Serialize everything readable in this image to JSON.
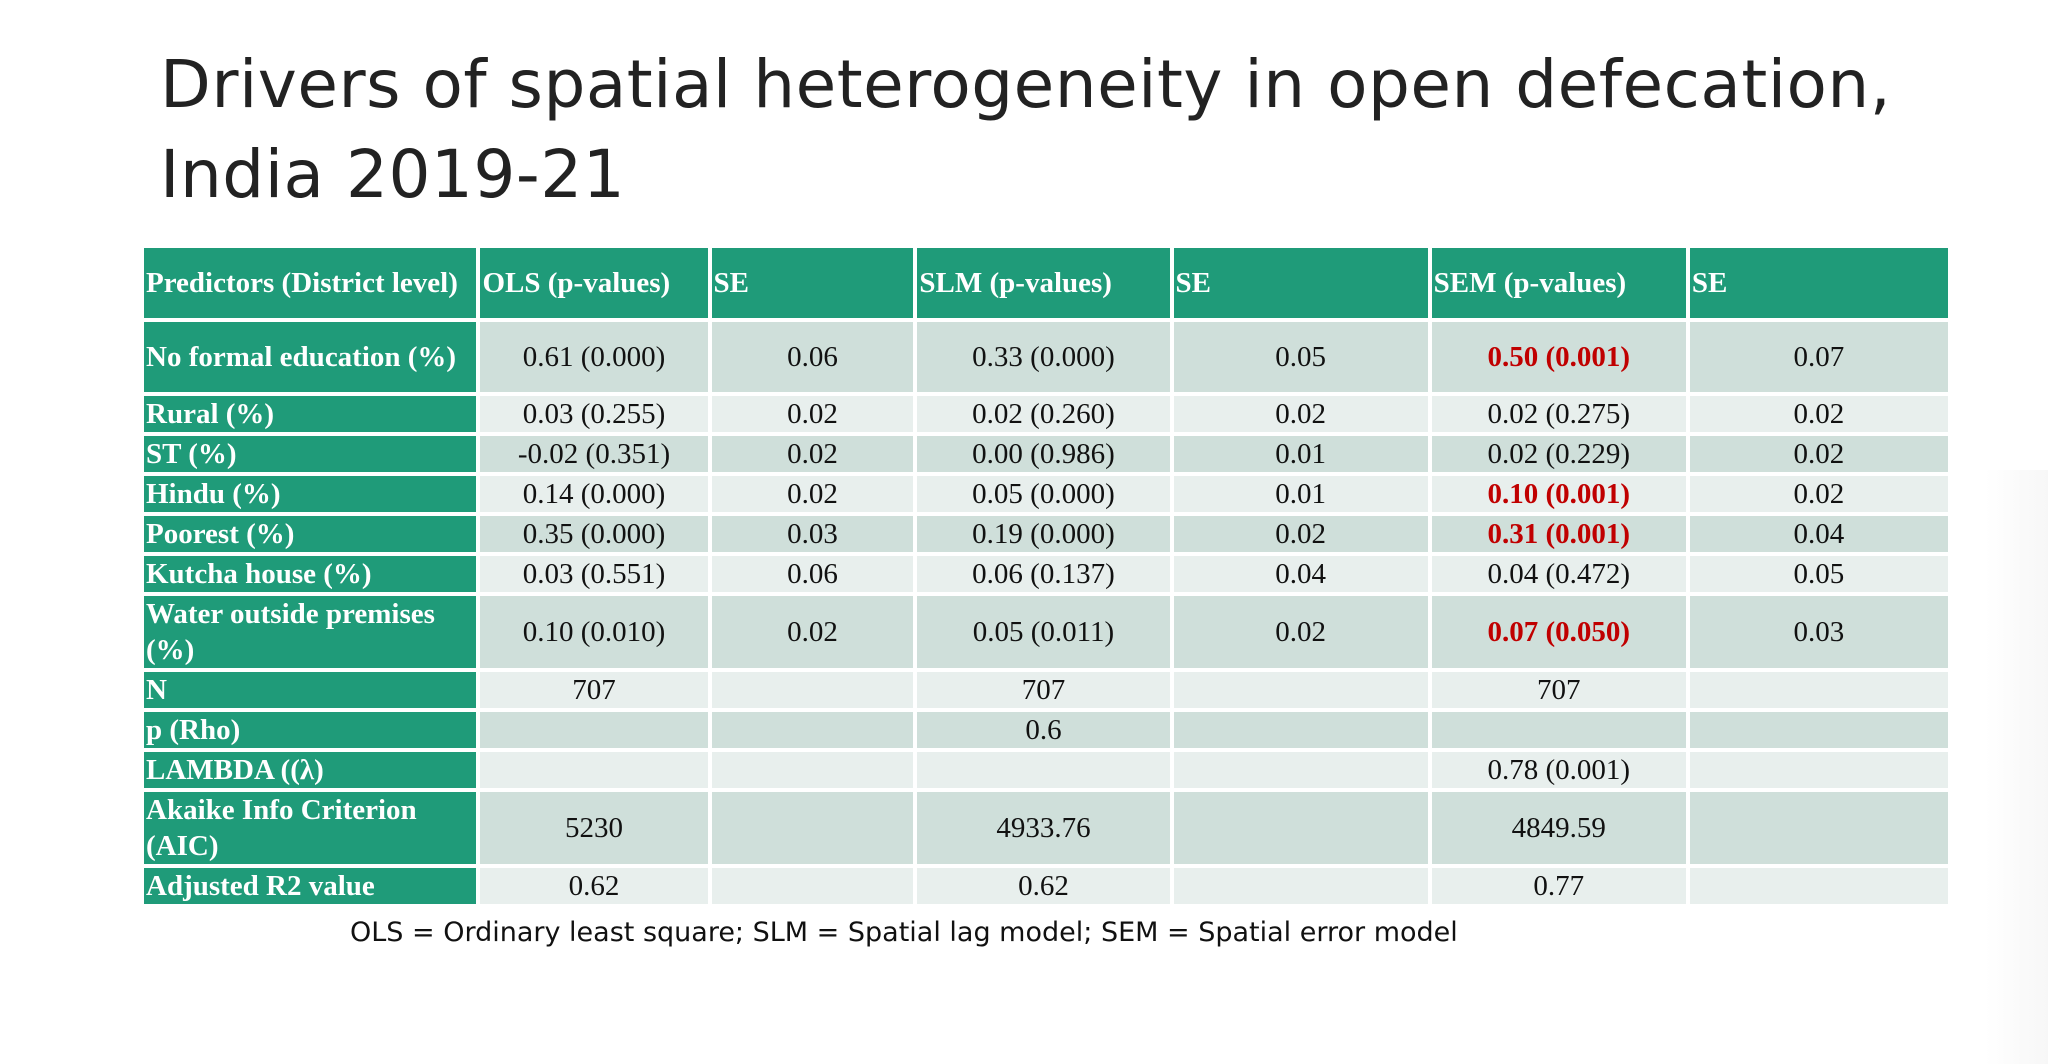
{
  "slide": {
    "title": "Drivers of spatial heterogeneity in open defecation, India 2019-21",
    "footnote": "OLS = Ordinary least square; SLM = Spatial lag model; SEM = Spatial error model"
  },
  "colors": {
    "header_green": "#1f9b79",
    "row_dark": "#cfdfda",
    "row_light": "#e8efed",
    "highlight_red": "#c00000"
  },
  "table": {
    "headers": [
      "Predictors (District level)",
      "OLS (p-values)",
      "SE",
      "SLM (p-values)",
      "SE",
      "SEM (p-values)",
      "SE"
    ],
    "rows": [
      {
        "label": "No formal education (%)",
        "ols": "0.61 (0.000)",
        "ols_se": "0.06",
        "slm": "0.33 (0.000)",
        "slm_se": "0.05",
        "sem": "0.50 (0.001)",
        "sem_se": "0.07"
      },
      {
        "label": "Rural (%)",
        "ols": "0.03 (0.255)",
        "ols_se": "0.02",
        "slm": "0.02 (0.260)",
        "slm_se": "0.02",
        "sem": "0.02 (0.275)",
        "sem_se": "0.02"
      },
      {
        "label": "ST (%)",
        "ols": "-0.02 (0.351)",
        "ols_se": "0.02",
        "slm": "0.00 (0.986)",
        "slm_se": "0.01",
        "sem": "0.02 (0.229)",
        "sem_se": "0.02"
      },
      {
        "label": "Hindu (%)",
        "ols": "0.14 (0.000)",
        "ols_se": "0.02",
        "slm": "0.05 (0.000)",
        "slm_se": "0.01",
        "sem": "0.10 (0.001)",
        "sem_se": "0.02"
      },
      {
        "label": "Poorest (%)",
        "ols": "0.35 (0.000)",
        "ols_se": "0.03",
        "slm": "0.19 (0.000)",
        "slm_se": "0.02",
        "sem": "0.31 (0.001)",
        "sem_se": "0.04"
      },
      {
        "label": "Kutcha house (%)",
        "ols": "0.03 (0.551)",
        "ols_se": "0.06",
        "slm": "0.06 (0.137)",
        "slm_se": "0.04",
        "sem": "0.04 (0.472)",
        "sem_se": "0.05"
      },
      {
        "label": "Water outside premises (%)",
        "ols": "0.10 (0.010)",
        "ols_se": "0.02",
        "slm": "0.05 (0.011)",
        "slm_se": "0.02",
        "sem": "0.07 (0.050)",
        "sem_se": "0.03"
      },
      {
        "label": "N",
        "ols": "707",
        "ols_se": "",
        "slm": "707",
        "slm_se": "",
        "sem": "707",
        "sem_se": ""
      },
      {
        "label": "p (Rho)",
        "ols": "",
        "ols_se": "",
        "slm": "0.6",
        "slm_se": "",
        "sem": "",
        "sem_se": ""
      },
      {
        "label": "LAMBDA ((λ)",
        "ols": "",
        "ols_se": "",
        "slm": "",
        "slm_se": "",
        "sem": "0.78 (0.001)",
        "sem_se": ""
      },
      {
        "label": "Akaike Info Criterion (AIC)",
        "ols": "5230",
        "ols_se": "",
        "slm": "4933.76",
        "slm_se": "",
        "sem": "4849.59",
        "sem_se": ""
      },
      {
        "label": "Adjusted R2 value",
        "ols": "0.62",
        "ols_se": "",
        "slm": "0.62",
        "slm_se": "",
        "sem": "0.77",
        "sem_se": ""
      }
    ]
  }
}
